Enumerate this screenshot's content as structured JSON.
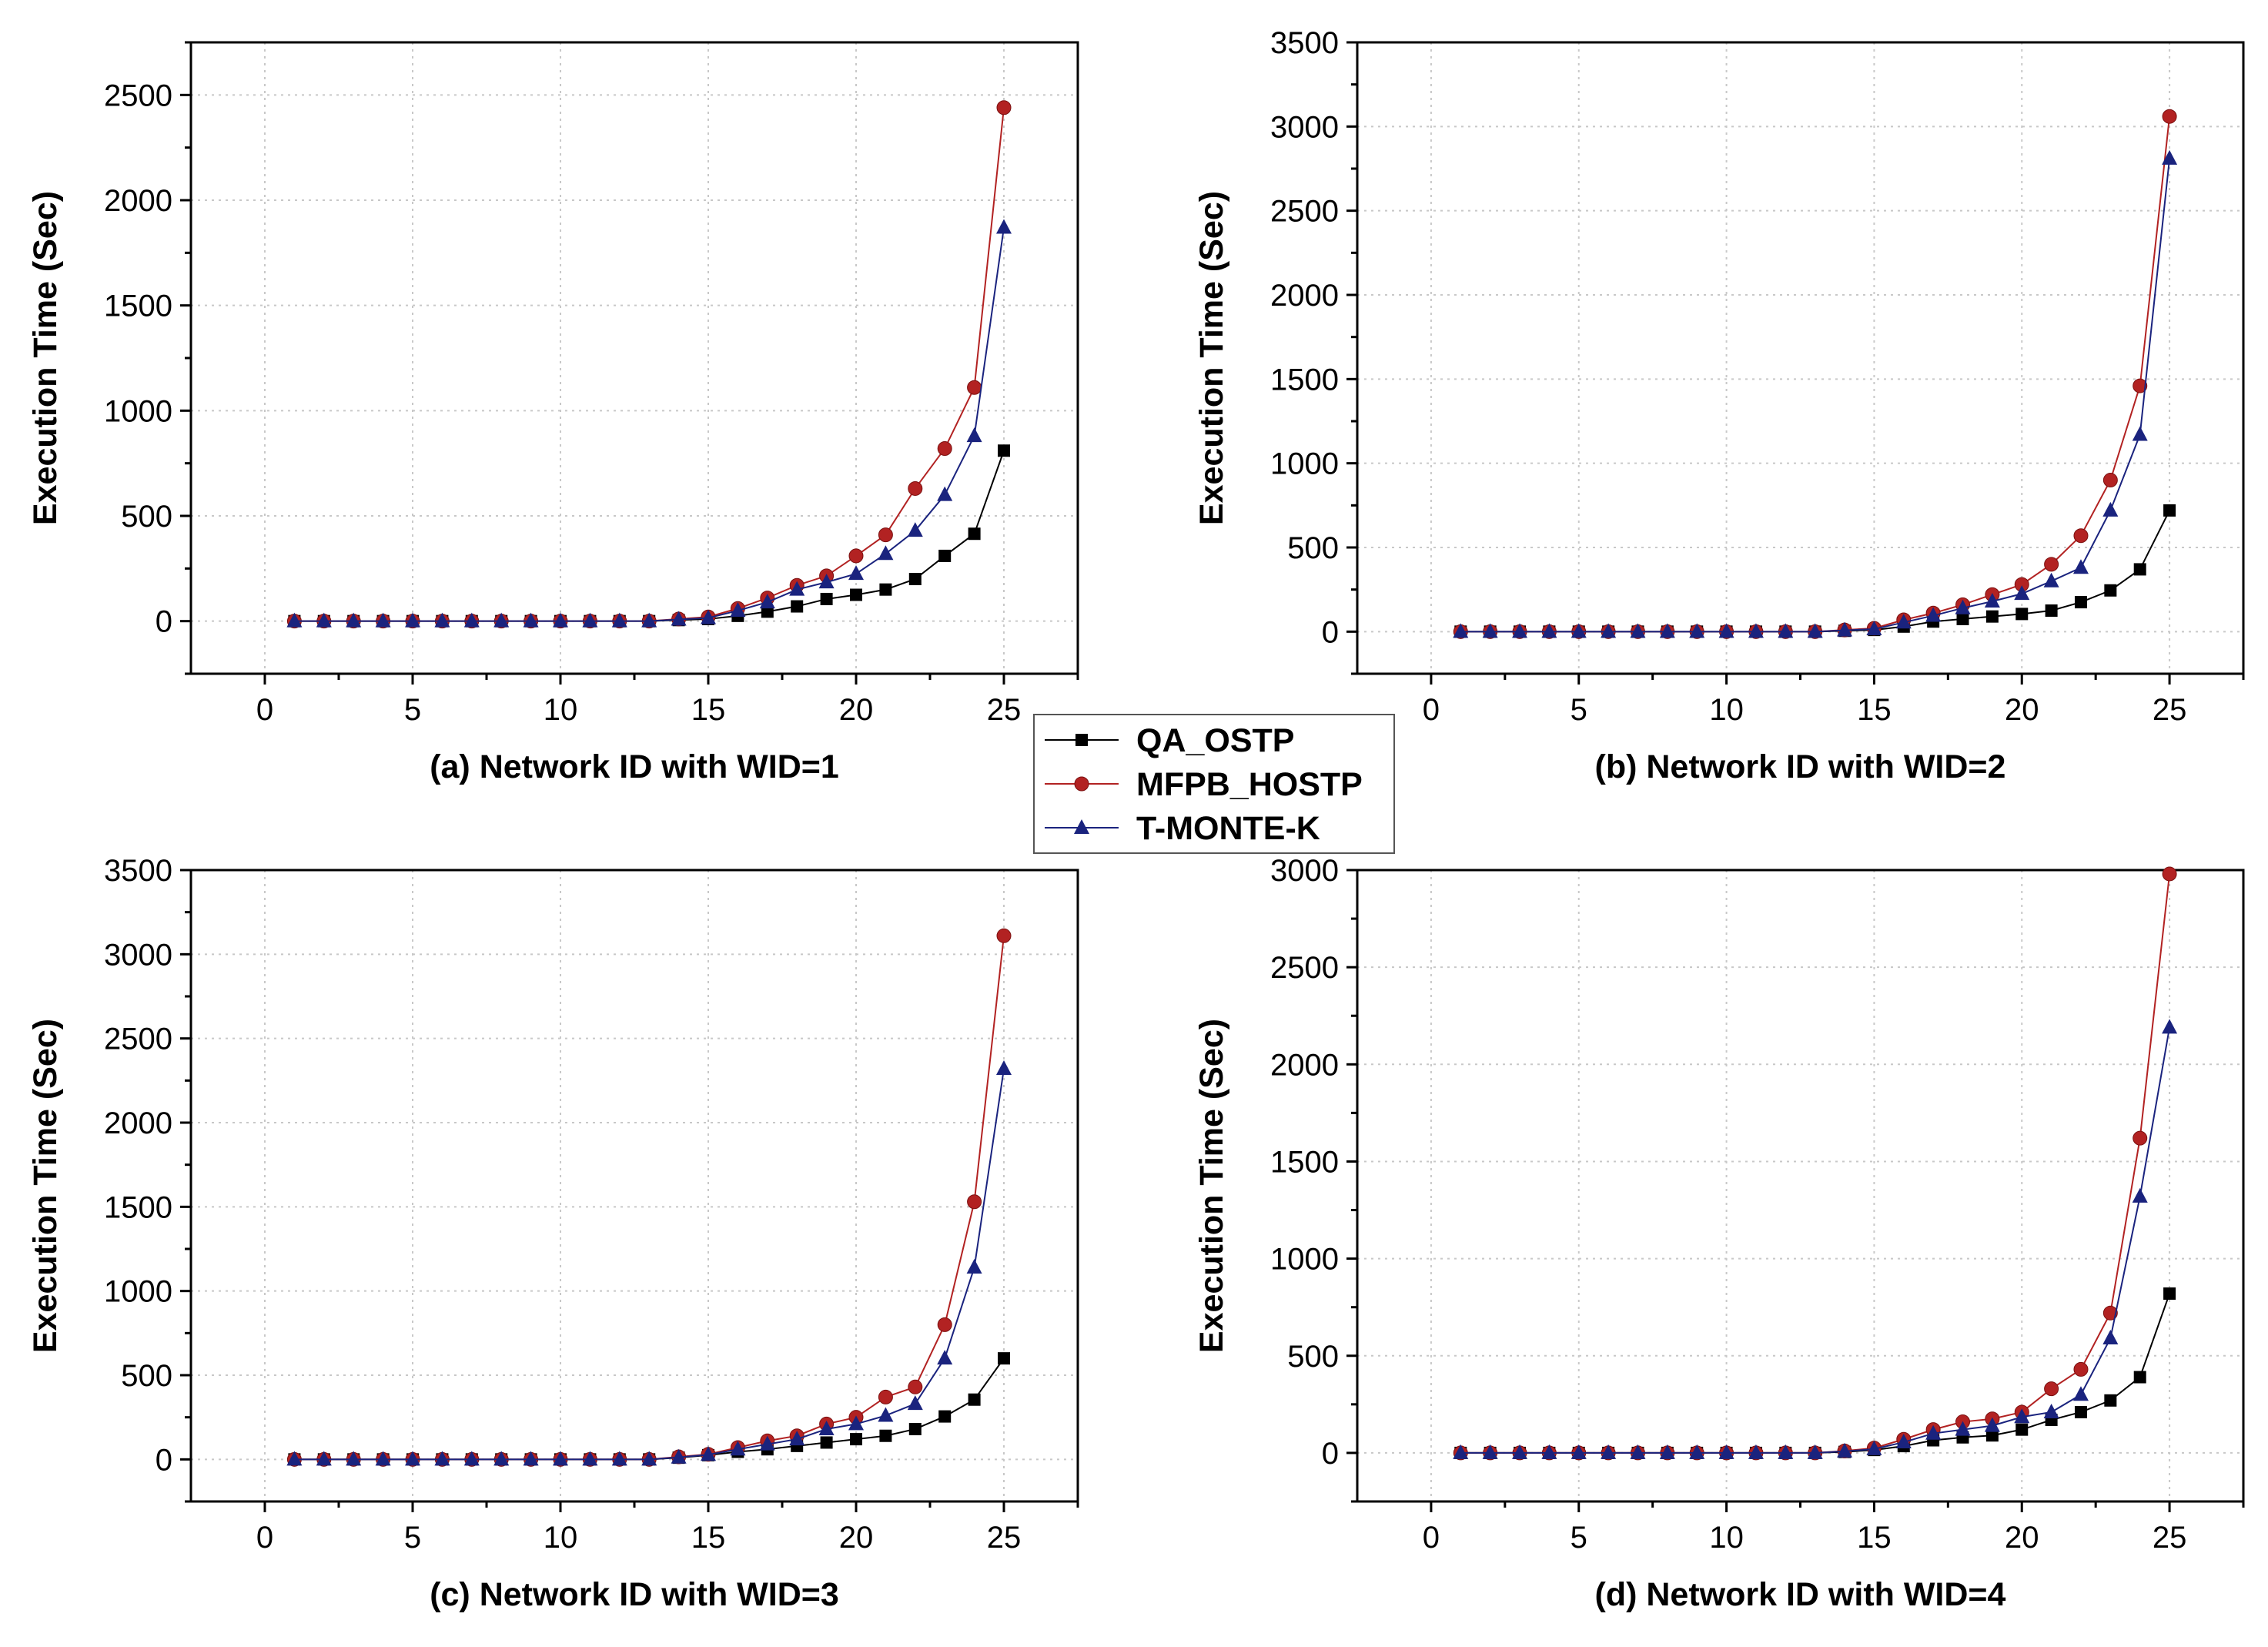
{
  "legend": {
    "entries": [
      {
        "name": "QA_OSTP",
        "color": "#000000",
        "marker": "square"
      },
      {
        "name": "MFPB_HOSTP",
        "color": "#b22222",
        "marker": "circle"
      },
      {
        "name": "T-MONTE-K",
        "color": "#1a237e",
        "marker": "triangle"
      }
    ]
  },
  "chart_data": [
    {
      "type": "line",
      "title": "",
      "xlabel": "(a) Network ID with WID=1",
      "ylabel": "Execution Time (Sec)",
      "xlim": [
        -2.5,
        27.5
      ],
      "ylim": [
        -250,
        2750
      ],
      "xticks": [
        0,
        5,
        10,
        15,
        20,
        25
      ],
      "yticks": [
        0,
        500,
        1000,
        1500,
        2000,
        2500
      ],
      "grid": true,
      "x": [
        1,
        2,
        3,
        4,
        5,
        6,
        7,
        8,
        9,
        10,
        11,
        12,
        13,
        14,
        15,
        16,
        17,
        18,
        19,
        20,
        21,
        22,
        23,
        24,
        25
      ],
      "series": [
        {
          "name": "QA_OSTP",
          "values": [
            0,
            0,
            0,
            0,
            0,
            0,
            0,
            0,
            0,
            0,
            0,
            0,
            0,
            5,
            10,
            25,
            45,
            70,
            105,
            125,
            150,
            200,
            310,
            415,
            810
          ]
        },
        {
          "name": "MFPB_HOSTP",
          "values": [
            0,
            0,
            0,
            0,
            0,
            0,
            0,
            0,
            0,
            0,
            0,
            0,
            0,
            10,
            20,
            60,
            110,
            170,
            215,
            310,
            410,
            630,
            820,
            1110,
            2440
          ]
        },
        {
          "name": "T-MONTE-K",
          "values": [
            0,
            0,
            0,
            0,
            0,
            0,
            0,
            0,
            0,
            0,
            0,
            0,
            0,
            8,
            15,
            50,
            90,
            150,
            185,
            225,
            320,
            430,
            600,
            880,
            1870
          ]
        }
      ]
    },
    {
      "type": "line",
      "title": "",
      "xlabel": "(b) Network ID with WID=2",
      "ylabel": "Execution Time (Sec)",
      "xlim": [
        -2.5,
        27.5
      ],
      "ylim": [
        -250,
        3500
      ],
      "xticks": [
        0,
        5,
        10,
        15,
        20,
        25
      ],
      "yticks": [
        0,
        500,
        1000,
        1500,
        2000,
        2500,
        3000,
        3500
      ],
      "grid": true,
      "x": [
        1,
        2,
        3,
        4,
        5,
        6,
        7,
        8,
        9,
        10,
        11,
        12,
        13,
        14,
        15,
        16,
        17,
        18,
        19,
        20,
        21,
        22,
        23,
        24,
        25
      ],
      "series": [
        {
          "name": "QA_OSTP",
          "values": [
            0,
            0,
            0,
            0,
            0,
            0,
            0,
            0,
            0,
            0,
            0,
            0,
            0,
            5,
            10,
            30,
            60,
            75,
            90,
            105,
            125,
            175,
            245,
            370,
            720
          ]
        },
        {
          "name": "MFPB_HOSTP",
          "values": [
            0,
            0,
            0,
            0,
            0,
            0,
            0,
            0,
            0,
            0,
            0,
            0,
            0,
            10,
            20,
            70,
            110,
            160,
            220,
            280,
            400,
            570,
            900,
            1460,
            3060
          ]
        },
        {
          "name": "T-MONTE-K",
          "values": [
            0,
            0,
            0,
            0,
            0,
            0,
            0,
            0,
            0,
            0,
            0,
            0,
            0,
            8,
            15,
            55,
            95,
            140,
            180,
            225,
            300,
            380,
            720,
            1170,
            2810
          ]
        }
      ]
    },
    {
      "type": "line",
      "title": "",
      "xlabel": "(c) Network ID with WID=3",
      "ylabel": "Execution Time (Sec)",
      "xlim": [
        -2.5,
        27.5
      ],
      "ylim": [
        -250,
        3500
      ],
      "xticks": [
        0,
        5,
        10,
        15,
        20,
        25
      ],
      "yticks": [
        0,
        500,
        1000,
        1500,
        2000,
        2500,
        3000,
        3500
      ],
      "grid": true,
      "x": [
        1,
        2,
        3,
        4,
        5,
        6,
        7,
        8,
        9,
        10,
        11,
        12,
        13,
        14,
        15,
        16,
        17,
        18,
        19,
        20,
        21,
        22,
        23,
        24,
        25
      ],
      "series": [
        {
          "name": "QA_OSTP",
          "values": [
            0,
            0,
            0,
            0,
            0,
            0,
            0,
            0,
            0,
            0,
            0,
            0,
            0,
            10,
            25,
            45,
            60,
            80,
            100,
            120,
            140,
            180,
            255,
            355,
            600
          ]
        },
        {
          "name": "MFPB_HOSTP",
          "values": [
            0,
            0,
            0,
            0,
            0,
            0,
            0,
            0,
            0,
            0,
            0,
            0,
            0,
            15,
            30,
            70,
            110,
            140,
            210,
            250,
            370,
            430,
            800,
            1530,
            3110
          ]
        },
        {
          "name": "T-MONTE-K",
          "values": [
            0,
            0,
            0,
            0,
            0,
            0,
            0,
            0,
            0,
            0,
            0,
            0,
            0,
            12,
            28,
            60,
            90,
            120,
            180,
            210,
            260,
            330,
            600,
            1140,
            2320
          ]
        }
      ]
    },
    {
      "type": "line",
      "title": "",
      "xlabel": "(d) Network ID with WID=4",
      "ylabel": "Execution Time (Sec)",
      "xlim": [
        -2.5,
        27.5
      ],
      "ylim": [
        -250,
        3000
      ],
      "xticks": [
        0,
        5,
        10,
        15,
        20,
        25
      ],
      "yticks": [
        0,
        500,
        1000,
        1500,
        2000,
        2500,
        3000
      ],
      "grid": true,
      "x": [
        1,
        2,
        3,
        4,
        5,
        6,
        7,
        8,
        9,
        10,
        11,
        12,
        13,
        14,
        15,
        16,
        17,
        18,
        19,
        20,
        21,
        22,
        23,
        24,
        25
      ],
      "series": [
        {
          "name": "QA_OSTP",
          "values": [
            0,
            0,
            0,
            0,
            0,
            0,
            0,
            0,
            0,
            0,
            0,
            0,
            0,
            5,
            15,
            35,
            65,
            80,
            90,
            120,
            170,
            210,
            270,
            390,
            820
          ]
        },
        {
          "name": "MFPB_HOSTP",
          "values": [
            0,
            0,
            0,
            0,
            0,
            0,
            0,
            0,
            0,
            0,
            0,
            0,
            0,
            10,
            25,
            70,
            120,
            160,
            175,
            210,
            330,
            430,
            720,
            1620,
            2980
          ]
        },
        {
          "name": "T-MONTE-K",
          "values": [
            0,
            0,
            0,
            0,
            0,
            0,
            0,
            0,
            0,
            0,
            0,
            0,
            0,
            8,
            20,
            55,
            100,
            120,
            140,
            185,
            210,
            300,
            590,
            1320,
            2190
          ]
        }
      ]
    }
  ]
}
